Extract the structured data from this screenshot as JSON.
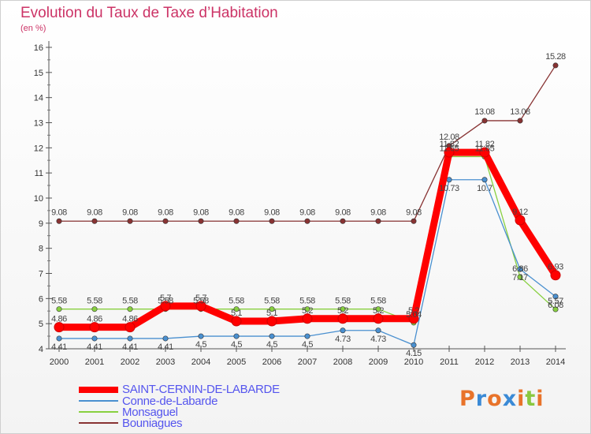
{
  "chart_data": {
    "type": "line",
    "title": "Evolution du Taux de Taxe d’Habitation",
    "ylabel": "(en %)",
    "ylim": [
      4,
      16
    ],
    "yticks": [
      "4",
      "5",
      "6",
      "7",
      "8",
      "9",
      "10",
      "11",
      "12",
      "13",
      "14",
      "15",
      "16"
    ],
    "categories": [
      "2000",
      "2001",
      "2002",
      "2003",
      "2004",
      "2005",
      "2006",
      "2007",
      "2008",
      "2009",
      "2010",
      "2011",
      "2012",
      "2013",
      "2014"
    ],
    "series": [
      {
        "name": "SAINT-CERNIN-DE-LABARDE",
        "color": "#ff0000",
        "values": [
          4.86,
          4.86,
          4.86,
          5.7,
          5.7,
          5.1,
          5.1,
          5.2,
          5.2,
          5.2,
          5.2,
          11.82,
          11.82,
          9.12,
          6.93
        ],
        "labels": [
          "4.86",
          "4.86",
          "4.86",
          "5.7",
          "5.7",
          "5.1",
          "5.1",
          "5.2",
          "5.2",
          "5.2",
          "5.2",
          "11.82",
          "11.82",
          "9.12",
          "6.93"
        ]
      },
      {
        "name": "Conne-de-Labarde",
        "color": "#4a90d0",
        "values": [
          4.41,
          4.41,
          4.41,
          4.41,
          4.5,
          4.5,
          4.5,
          4.5,
          4.73,
          4.73,
          4.15,
          10.73,
          10.73,
          7.17,
          6.08
        ],
        "labels": [
          "4.41",
          "4.41",
          "4.41",
          "4.41",
          "4.5",
          "4.5",
          "4.5",
          "4.5",
          "4.73",
          "4.73",
          "4.15",
          "10.73",
          "10.7",
          "7.17",
          "6.08"
        ]
      },
      {
        "name": "Monsaguel",
        "color": "#88d040",
        "values": [
          5.58,
          5.58,
          5.58,
          5.58,
          5.58,
          5.58,
          5.58,
          5.58,
          5.58,
          5.58,
          5.04,
          11.65,
          11.65,
          6.86,
          5.57
        ],
        "labels": [
          "5.58",
          "5.58",
          "5.58",
          "5.58",
          "5.58",
          "5.58",
          "5.58",
          "5.58",
          "5.58",
          "5.58",
          "5.04",
          "11.65",
          "11.65",
          "6.86",
          "5.57"
        ]
      },
      {
        "name": "Bouniagues",
        "color": "#883333",
        "values": [
          9.08,
          9.08,
          9.08,
          9.08,
          9.08,
          9.08,
          9.08,
          9.08,
          9.08,
          9.08,
          9.08,
          12.08,
          13.08,
          13.08,
          15.28
        ],
        "labels": [
          "9.08",
          "9.08",
          "9.08",
          "9.08",
          "9.08",
          "9.08",
          "9.08",
          "9.08",
          "9.08",
          "9.08",
          "9.08",
          "12.08",
          "13.08",
          "13.08",
          "15.28"
        ]
      }
    ]
  },
  "logo": {
    "letters": [
      "P",
      "r",
      "o",
      "x",
      "i",
      "t",
      "i"
    ],
    "colors": [
      "#e8732a",
      "#3a8ad6",
      "#e8732a",
      "#3a8ad6",
      "#e8732a",
      "#8ac840",
      "#e8732a"
    ]
  }
}
